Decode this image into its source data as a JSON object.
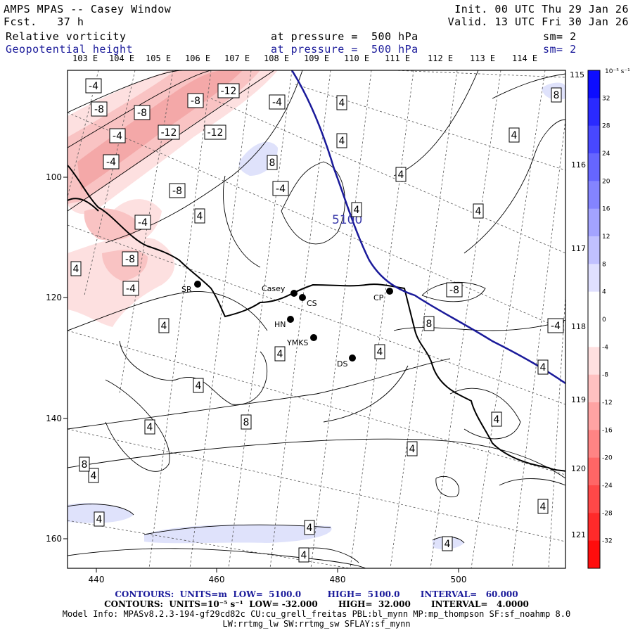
{
  "header": {
    "title": "AMPS MPAS -- Casey Window",
    "forecast": "Fcst.   37 h",
    "init": "Init. 00 UTC Thu 29 Jan 26",
    "valid": "Valid. 13 UTC Fri 30 Jan 26",
    "field1": {
      "name": "Relative vorticity",
      "pressure": "at pressure =  500 hPa",
      "sm": "sm= 2"
    },
    "field2": {
      "name": "Geopotential height",
      "pressure": "at pressure =  500 hPa",
      "sm": "sm= 2"
    }
  },
  "lon_top_labels": [
    "103 E",
    "104 E",
    "105 E",
    "106 E",
    "107 E",
    "108 E",
    "109 E",
    "110 E",
    "111 E",
    "112 E",
    "113 E",
    "114 E"
  ],
  "lon_right_labels": [
    "115 E",
    "116 E",
    "117 E",
    "118 E",
    "119 E",
    "120 E",
    "121 E"
  ],
  "x_ticks": [
    "440",
    "460",
    "480",
    "500"
  ],
  "y_ticks": [
    "100",
    "120",
    "140",
    "160"
  ],
  "colorbar": {
    "unit": "10⁻⁵ s⁻¹",
    "labels": [
      "32",
      "28",
      "24",
      "20",
      "16",
      "12",
      "8",
      "4",
      "0",
      "-4",
      "-8",
      "-12",
      "-16",
      "-20",
      "-24",
      "-28",
      "-32"
    ],
    "colors": [
      "#0d0dff",
      "#2a2aff",
      "#4848ff",
      "#6666ff",
      "#8484ff",
      "#a3a3ff",
      "#c1c1ff",
      "#e0e0ff",
      "#ffffff",
      "#ffffff",
      "#ffe0e0",
      "#ffc1c1",
      "#ffa3a3",
      "#ff8484",
      "#ff6666",
      "#ff4848",
      "#ff2a2a",
      "#ff0d0d"
    ]
  },
  "stations": [
    "Casey",
    "CS",
    "CP",
    "SR",
    "HN",
    "YMKS",
    "DS"
  ],
  "height_contour_label": "5100",
  "vorticity_labels": [
    "-4",
    "-8",
    "-8",
    "-8",
    "-12",
    "-4",
    "4",
    "-4",
    "-12",
    "-12",
    "-4",
    "8",
    "4",
    "-4",
    "-8",
    "4",
    "4",
    "8",
    "-4",
    "4",
    "-4",
    "-8",
    "4",
    "-8",
    "4",
    "-4",
    "4",
    "4",
    "4",
    "4",
    "4",
    "4",
    "4",
    "4",
    "4",
    "4",
    "4",
    "4",
    "4",
    "8",
    "4",
    "8",
    "8",
    "4"
  ],
  "footer": {
    "contours1": "CONTOURS:  UNITS=m  LOW=  5100.0         HIGH=  5100.0       INTERVAL=   60.000",
    "contours2": "CONTOURS:  UNITS=10⁻⁵ s⁻¹  LOW= -32.000       HIGH=  32.000       INTERVAL=   4.0000",
    "model_info": "Model Info: MPASv8.2.3-194-gf29cd82c CU:cu_grell_freitas PBL:bl_mynn MP:mp_thompson SF:sf_noahmp 8.0",
    "model_info2": "LW:rrtmg_lw SW:rrtmg_sw SFLAY:sf_mynn"
  }
}
